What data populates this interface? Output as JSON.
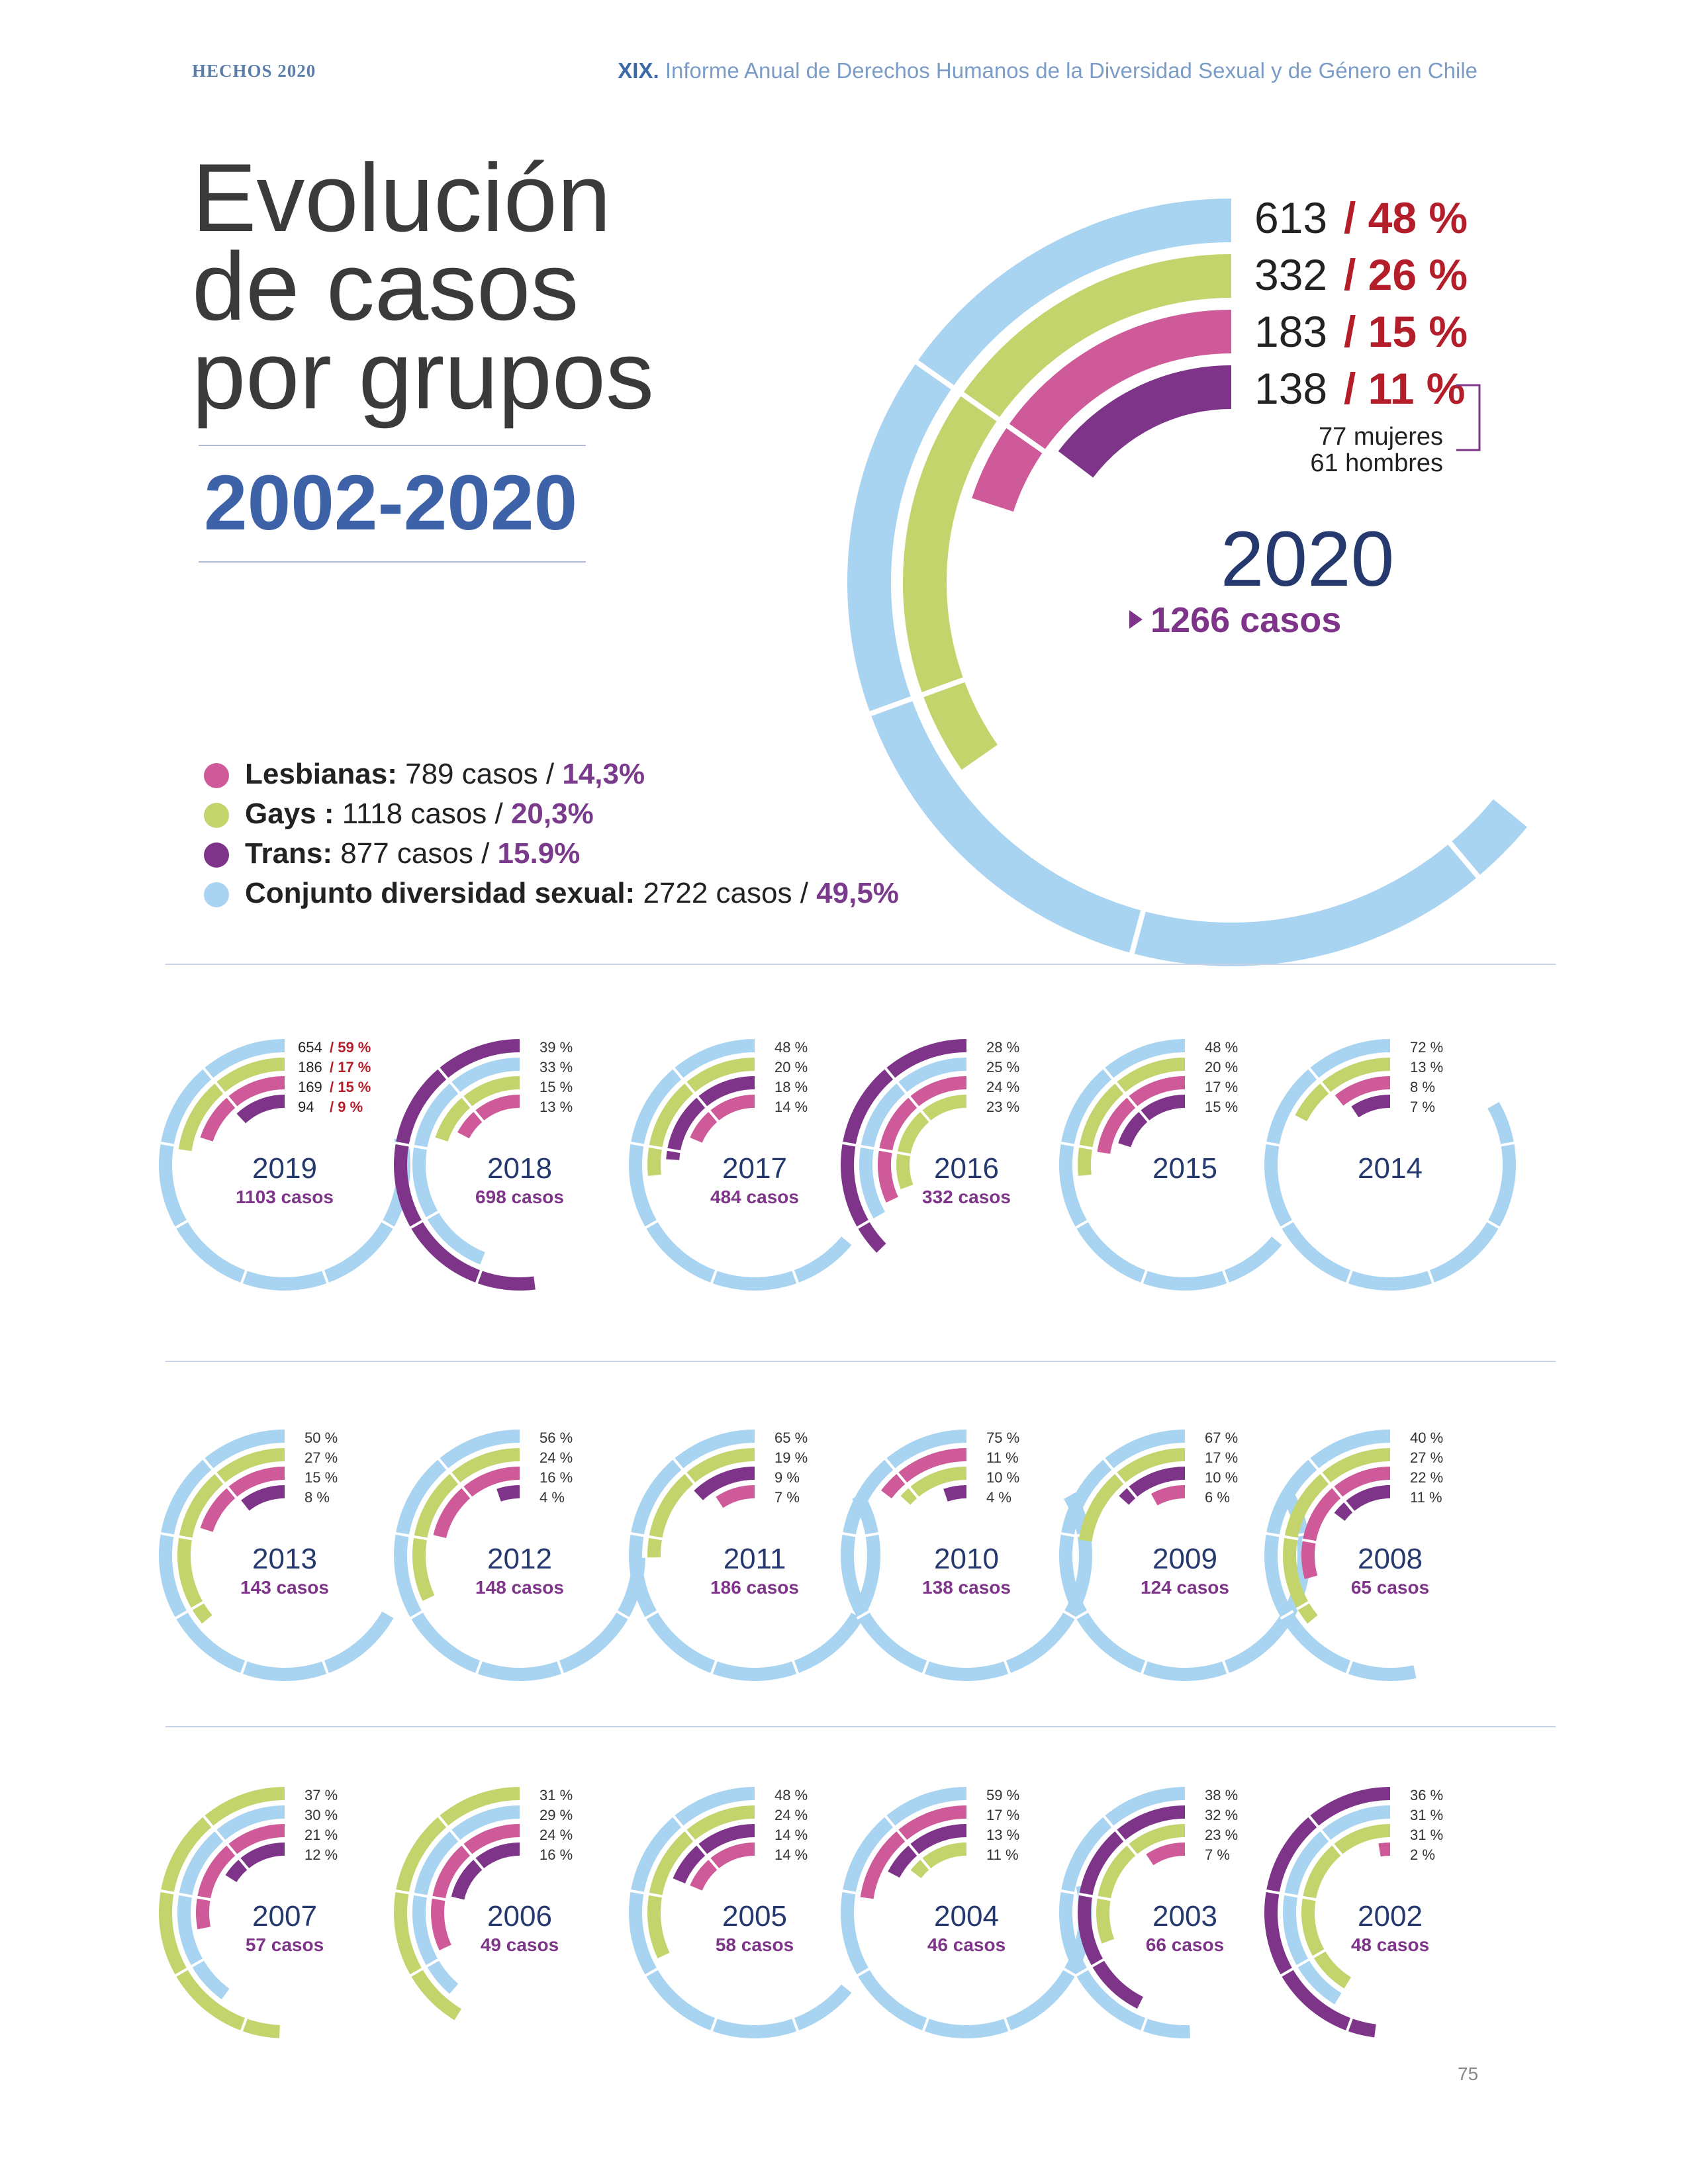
{
  "header": {
    "left": "HECHOS 2020",
    "right_prefix": "XIX.",
    "right_text": "Informe Anual de Derechos Humanos de la Diversidad Sexual y de Género en Chile"
  },
  "title": {
    "line1": "Evolución",
    "line2": "de casos",
    "line3": "por grupos",
    "range": "2002-2020"
  },
  "legend": [
    {
      "name": "Lesbianas:",
      "cases": " 789 casos / ",
      "pct": "14,3%",
      "color": "#cf5a99"
    },
    {
      "name": "Gays :",
      "cases": " 1118 casos / ",
      "pct": "20,3%",
      "color": "#c3d46c"
    },
    {
      "name": "Trans:",
      "cases": " 877 casos / ",
      "pct": "15.9%",
      "color": "#7e3589"
    },
    {
      "name": "Conjunto diversidad sexual:",
      "cases": " 2722 casos / ",
      "pct": "49,5%",
      "color": "#a8d3f1"
    }
  ],
  "page_number": "75",
  "chart_data": {
    "type": "concentric-arc",
    "series_colors": {
      "diversidad": "#a8d3f1",
      "gays": "#c3d46c",
      "lesbianas": "#cf5a99",
      "trans": "#7e3589"
    },
    "main": {
      "year": "2020",
      "total_label": "1266 casos",
      "rows": [
        {
          "count": "613",
          "pct": "/ 48 %"
        },
        {
          "count": "332",
          "pct": "/ 26 %"
        },
        {
          "count": "183",
          "pct": "/ 15 %"
        },
        {
          "count": "138",
          "pct": "/ 11 %"
        }
      ],
      "trans_note": [
        "77 mujeres",
        "61 hombres"
      ],
      "rings": [
        {
          "group": "diversidad",
          "value": 48
        },
        {
          "group": "gays",
          "value": 26
        },
        {
          "group": "lesbianas",
          "value": 15
        },
        {
          "group": "trans",
          "value": 11
        }
      ]
    },
    "years": [
      {
        "year": "2019",
        "total": "1103 casos",
        "labels": [
          {
            "count": "654",
            "pct": "/ 59 %"
          },
          {
            "count": "186",
            "pct": "/ 17 %"
          },
          {
            "count": "169",
            "pct": "/ 15 %"
          },
          {
            "count": "94",
            "pct": "/ 9 %"
          }
        ],
        "rings": [
          {
            "group": "diversidad",
            "value": 59
          },
          {
            "group": "gays",
            "value": 17
          },
          {
            "group": "lesbianas",
            "value": 15
          },
          {
            "group": "trans",
            "value": 9
          }
        ]
      },
      {
        "year": "2018",
        "total": "698 casos",
        "labels": [
          "39 %",
          "33 %",
          "15 %",
          "13 %"
        ],
        "rings": [
          {
            "group": "trans",
            "value": 39
          },
          {
            "group": "diversidad",
            "value": 33
          },
          {
            "group": "gays",
            "value": 15
          },
          {
            "group": "lesbianas",
            "value": 13
          }
        ]
      },
      {
        "year": "2017",
        "total": "484 casos",
        "labels": [
          "48 %",
          "20 %",
          "18 %",
          "14 %"
        ],
        "rings": [
          {
            "group": "diversidad",
            "value": 48
          },
          {
            "group": "gays",
            "value": 20
          },
          {
            "group": "trans",
            "value": 18
          },
          {
            "group": "lesbianas",
            "value": 14
          }
        ]
      },
      {
        "year": "2016",
        "total": "332 casos",
        "labels": [
          "28 %",
          "25 %",
          "24 %",
          "23 %"
        ],
        "rings": [
          {
            "group": "trans",
            "value": 28
          },
          {
            "group": "diversidad",
            "value": 25
          },
          {
            "group": "lesbianas",
            "value": 24
          },
          {
            "group": "gays",
            "value": 23
          }
        ]
      },
      {
        "year": "2015",
        "total": "",
        "labels": [
          "48 %",
          "20 %",
          "17 %",
          "15 %"
        ],
        "rings": [
          {
            "group": "diversidad",
            "value": 48
          },
          {
            "group": "gays",
            "value": 20
          },
          {
            "group": "lesbianas",
            "value": 17
          },
          {
            "group": "trans",
            "value": 15
          }
        ]
      },
      {
        "year": "2014",
        "total": "",
        "labels": [
          "72 %",
          "13 %",
          "8 %",
          "7 %"
        ],
        "rings": [
          {
            "group": "diversidad",
            "value": 72
          },
          {
            "group": "gays",
            "value": 13
          },
          {
            "group": "lesbianas",
            "value": 8
          },
          {
            "group": "trans",
            "value": 7
          }
        ]
      },
      {
        "year": "2013",
        "total": "143 casos",
        "labels": [
          "50 %",
          "27 %",
          "15 %",
          "8 %"
        ],
        "rings": [
          {
            "group": "diversidad",
            "value": 50
          },
          {
            "group": "gays",
            "value": 27
          },
          {
            "group": "lesbianas",
            "value": 15
          },
          {
            "group": "trans",
            "value": 8
          }
        ]
      },
      {
        "year": "2012",
        "total": "148 casos",
        "labels": [
          "56 %",
          "24 %",
          "16 %",
          "4 %"
        ],
        "rings": [
          {
            "group": "diversidad",
            "value": 56
          },
          {
            "group": "gays",
            "value": 24
          },
          {
            "group": "lesbianas",
            "value": 16
          },
          {
            "group": "trans",
            "value": 4
          }
        ]
      },
      {
        "year": "2011",
        "total": "186 casos",
        "labels": [
          "65 %",
          "19 %",
          "9 %",
          "7 %"
        ],
        "rings": [
          {
            "group": "diversidad",
            "value": 65
          },
          {
            "group": "gays",
            "value": 19
          },
          {
            "group": "trans",
            "value": 9
          },
          {
            "group": "lesbianas",
            "value": 7
          }
        ]
      },
      {
        "year": "2010",
        "total": "138 casos",
        "labels": [
          "75 %",
          "11 %",
          "10 %",
          "4 %"
        ],
        "rings": [
          {
            "group": "diversidad",
            "value": 75
          },
          {
            "group": "lesbianas",
            "value": 11
          },
          {
            "group": "gays",
            "value": 10
          },
          {
            "group": "trans",
            "value": 4
          }
        ]
      },
      {
        "year": "2009",
        "total": "124 casos",
        "labels": [
          "67 %",
          "17 %",
          "10 %",
          "6 %"
        ],
        "rings": [
          {
            "group": "diversidad",
            "value": 67
          },
          {
            "group": "gays",
            "value": 17
          },
          {
            "group": "trans",
            "value": 10
          },
          {
            "group": "lesbianas",
            "value": 6
          }
        ]
      },
      {
        "year": "2008",
        "total": "65 casos",
        "labels": [
          "40 %",
          "27 %",
          "22 %",
          "11 %"
        ],
        "rings": [
          {
            "group": "diversidad",
            "value": 40
          },
          {
            "group": "gays",
            "value": 27
          },
          {
            "group": "lesbianas",
            "value": 22
          },
          {
            "group": "trans",
            "value": 11
          }
        ]
      },
      {
        "year": "2007",
        "total": "57 casos",
        "labels": [
          "37 %",
          "30 %",
          "21 %",
          "12 %"
        ],
        "rings": [
          {
            "group": "gays",
            "value": 37
          },
          {
            "group": "diversidad",
            "value": 30
          },
          {
            "group": "lesbianas",
            "value": 21
          },
          {
            "group": "trans",
            "value": 12
          }
        ]
      },
      {
        "year": "2006",
        "total": "49 casos",
        "labels": [
          "31 %",
          "29 %",
          "24 %",
          "16 %"
        ],
        "rings": [
          {
            "group": "gays",
            "value": 31
          },
          {
            "group": "diversidad",
            "value": 29
          },
          {
            "group": "lesbianas",
            "value": 24
          },
          {
            "group": "trans",
            "value": 16
          }
        ]
      },
      {
        "year": "2005",
        "total": "58 casos",
        "labels": [
          "48 %",
          "24 %",
          "14 %",
          "14 %"
        ],
        "rings": [
          {
            "group": "diversidad",
            "value": 48
          },
          {
            "group": "gays",
            "value": 24
          },
          {
            "group": "trans",
            "value": 14
          },
          {
            "group": "lesbianas",
            "value": 14
          }
        ]
      },
      {
        "year": "2004",
        "total": "46 casos",
        "labels": [
          "59 %",
          "17 %",
          "13 %",
          "11 %"
        ],
        "rings": [
          {
            "group": "diversidad",
            "value": 59
          },
          {
            "group": "lesbianas",
            "value": 17
          },
          {
            "group": "trans",
            "value": 13
          },
          {
            "group": "gays",
            "value": 11
          }
        ]
      },
      {
        "year": "2003",
        "total": "66 casos",
        "labels": [
          "38 %",
          "32 %",
          "23 %",
          "7 %"
        ],
        "rings": [
          {
            "group": "diversidad",
            "value": 38
          },
          {
            "group": "trans",
            "value": 32
          },
          {
            "group": "gays",
            "value": 23
          },
          {
            "group": "lesbianas",
            "value": 7
          }
        ]
      },
      {
        "year": "2002",
        "total": "48 casos",
        "labels": [
          "36 %",
          "31 %",
          "31 %",
          "2 %"
        ],
        "rings": [
          {
            "group": "trans",
            "value": 36
          },
          {
            "group": "diversidad",
            "value": 31
          },
          {
            "group": "gays",
            "value": 31
          },
          {
            "group": "lesbianas",
            "value": 2
          }
        ]
      }
    ]
  }
}
